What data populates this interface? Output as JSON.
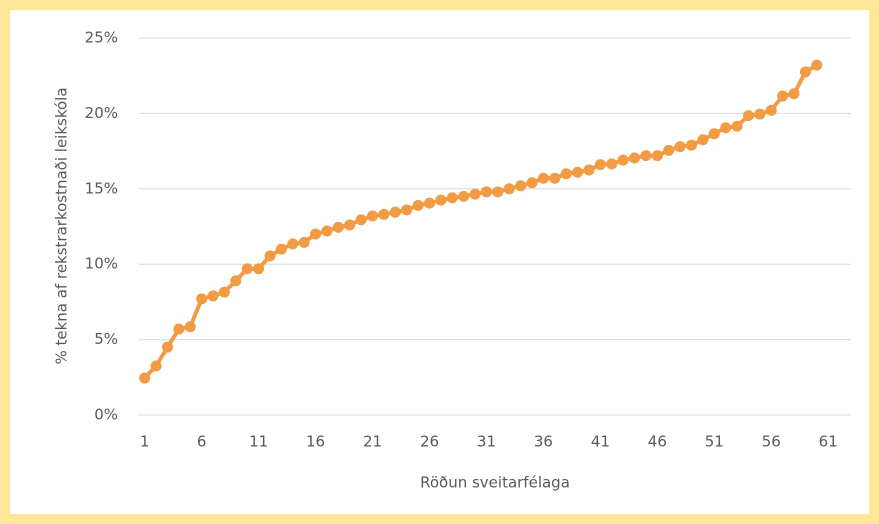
{
  "chart_data": {
    "type": "line",
    "x_label": "Röðun sveitarfélaga",
    "y_label": "% tekna af rekstrarkostnaði leikskóla",
    "x": [
      1,
      2,
      3,
      4,
      5,
      6,
      7,
      8,
      9,
      10,
      11,
      12,
      13,
      14,
      15,
      16,
      17,
      18,
      19,
      20,
      21,
      22,
      23,
      24,
      25,
      26,
      27,
      28,
      29,
      30,
      31,
      32,
      33,
      34,
      35,
      36,
      37,
      38,
      39,
      40,
      41,
      42,
      43,
      44,
      45,
      46,
      47,
      48,
      49,
      50,
      51,
      52,
      53,
      54,
      55,
      56,
      57,
      58,
      59,
      60
    ],
    "series": [
      {
        "color": "#F29B45",
        "values": [
          2.45,
          3.25,
          4.5,
          5.7,
          5.85,
          7.7,
          7.9,
          8.15,
          8.9,
          9.7,
          9.7,
          10.55,
          11.0,
          11.35,
          11.45,
          12.0,
          12.2,
          12.45,
          12.6,
          12.95,
          13.2,
          13.3,
          13.45,
          13.6,
          13.9,
          14.05,
          14.25,
          14.4,
          14.5,
          14.65,
          14.8,
          14.8,
          15.0,
          15.2,
          15.4,
          15.7,
          15.7,
          16.0,
          16.1,
          16.25,
          16.6,
          16.65,
          16.9,
          17.05,
          17.2,
          17.2,
          17.55,
          17.8,
          17.9,
          18.25,
          18.65,
          19.05,
          19.15,
          19.85,
          19.95,
          20.2,
          21.15,
          21.3,
          22.75,
          23.2
        ]
      }
    ],
    "xlim": [
      0.5,
      63
    ],
    "xticks": [
      1,
      6,
      11,
      16,
      21,
      26,
      31,
      36,
      41,
      46,
      51,
      56,
      61
    ],
    "ylim": [
      0,
      25
    ],
    "yticks": [
      {
        "value": 0,
        "label": "0%"
      },
      {
        "value": 5,
        "label": "5%"
      },
      {
        "value": 10,
        "label": "10%"
      },
      {
        "value": 15,
        "label": "15%"
      },
      {
        "value": 20,
        "label": "20%"
      },
      {
        "value": 25,
        "label": "25%"
      }
    ],
    "grid": true,
    "markers": true
  }
}
